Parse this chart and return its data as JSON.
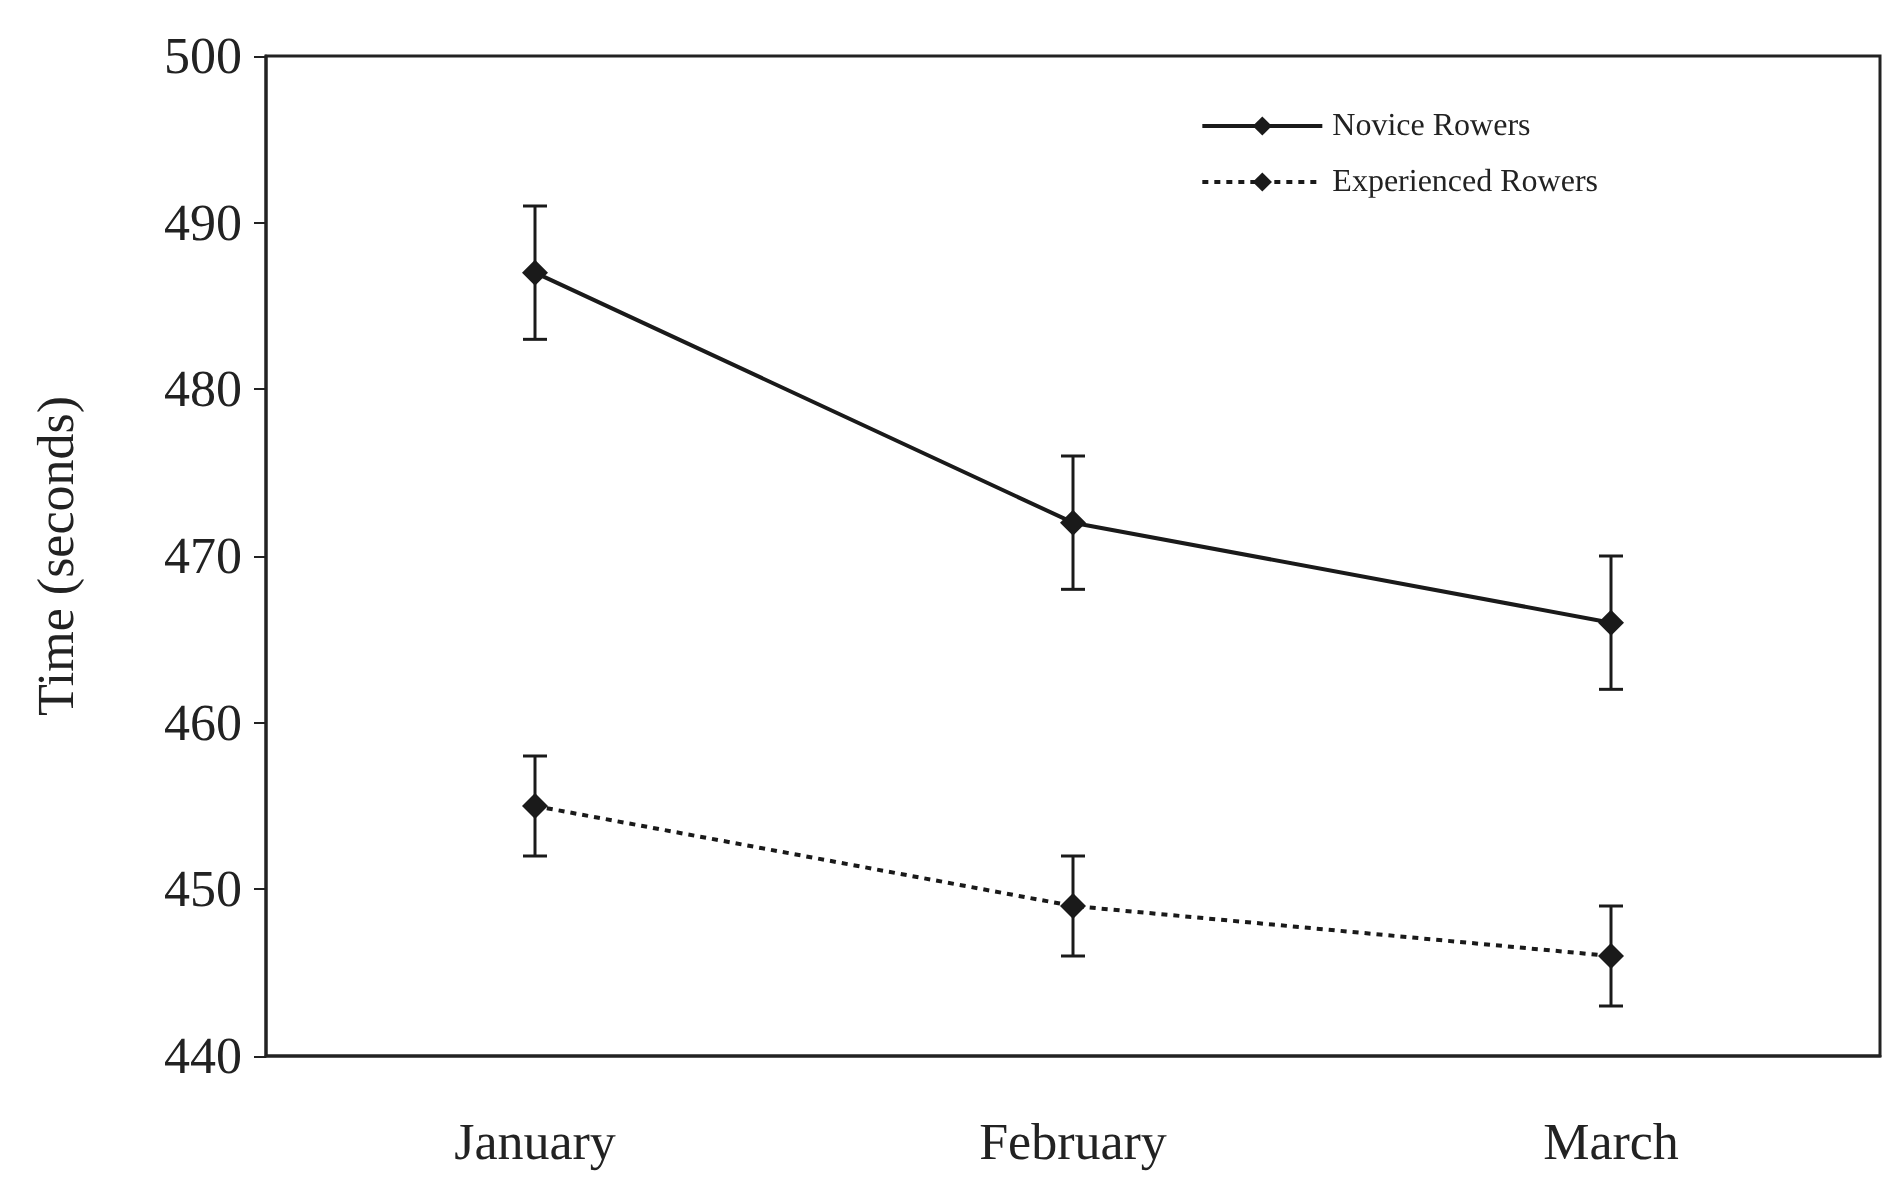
{
  "chart_data": {
    "type": "line",
    "ylabel": "Time (seconds)",
    "categories": [
      "January",
      "February",
      "March"
    ],
    "series": [
      {
        "name": "Novice Rowers",
        "color": "#1a1a1a",
        "line_style": "solid",
        "values": [
          487,
          472,
          466
        ],
        "errors": [
          4,
          4,
          4
        ]
      },
      {
        "name": "Experienced Rowers",
        "color": "#1a1a1a",
        "line_style": "dotted",
        "values": [
          455,
          449,
          446
        ],
        "errors": [
          3,
          3,
          3
        ]
      }
    ],
    "ylim": [
      440,
      500
    ],
    "yticks": [
      440,
      450,
      460,
      470,
      480,
      490,
      500
    ],
    "grid": false,
    "legend": "top right",
    "marker": "diamond"
  }
}
